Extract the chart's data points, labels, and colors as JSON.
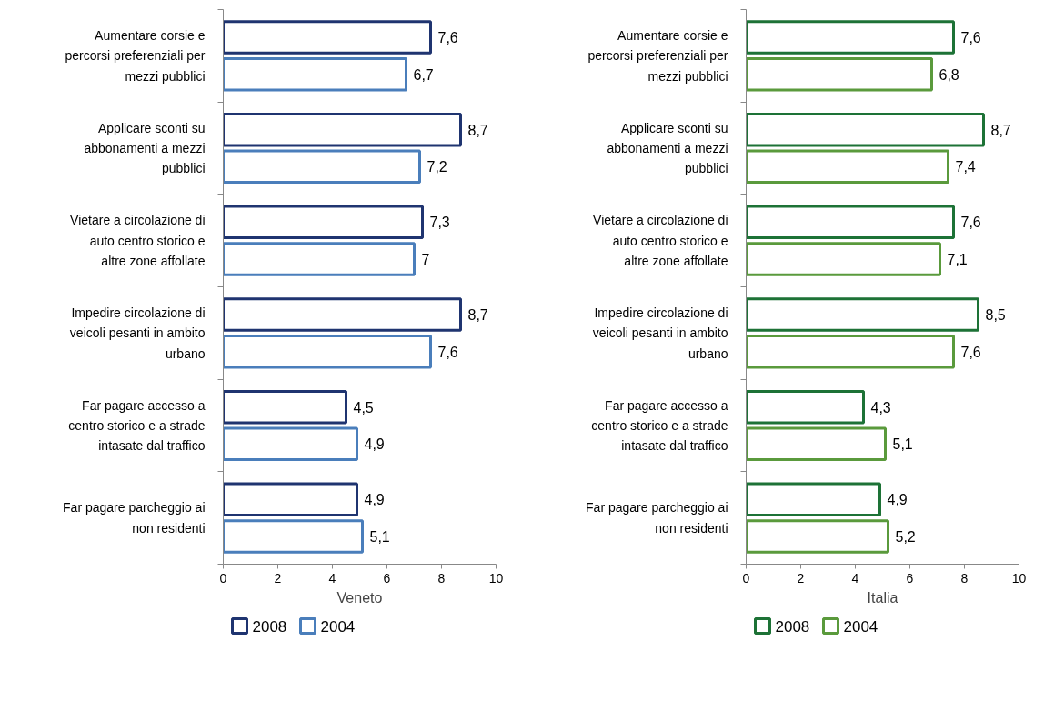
{
  "chart_data": [
    {
      "type": "bar",
      "orientation": "horizontal",
      "xlabel": "Veneto",
      "categories": [
        "Aumentare corsie e percorsi preferenziali per mezzi pubblici",
        "Applicare sconti su abbonamenti a mezzi pubblici",
        "Vietare a circolazione di auto centro storico e altre zone affollate",
        "Impedire circolazione di veicoli pesanti in ambito urbano",
        "Far pagare accesso a centro storico e a strade intasate dal traffico",
        "Far pagare parcheggio ai non residenti"
      ],
      "series": [
        {
          "name": "2008",
          "color": "#1f3470",
          "values": [
            7.6,
            8.7,
            7.3,
            8.7,
            4.5,
            4.9
          ],
          "value_labels": [
            "7,6",
            "8,7",
            "7,3",
            "8,7",
            "4,5",
            "4,9"
          ]
        },
        {
          "name": "2004",
          "color": "#4a7ebb",
          "values": [
            6.7,
            7.2,
            7,
            7.6,
            4.9,
            5.1
          ],
          "value_labels": [
            "6,7",
            "7,2",
            "7",
            "7,6",
            "4,9",
            "5,1"
          ]
        }
      ],
      "xlim": [
        0,
        10
      ],
      "xticks": [
        0,
        2,
        4,
        6,
        8,
        10
      ],
      "grid": false,
      "legend": "bottom"
    },
    {
      "type": "bar",
      "orientation": "horizontal",
      "xlabel": "Italia",
      "categories": [
        "Aumentare corsie e percorsi preferenziali per mezzi pubblici",
        "Applicare sconti su abbonamenti a mezzi pubblici",
        "Vietare a circolazione di auto centro storico e altre zone affollate",
        "Impedire circolazione di veicoli pesanti in ambito urbano",
        "Far pagare accesso a centro storico e a strade intasate dal traffico",
        "Far pagare parcheggio ai non residenti"
      ],
      "series": [
        {
          "name": "2008",
          "color": "#1d7236",
          "values": [
            7.6,
            8.7,
            7.6,
            8.5,
            4.3,
            4.9
          ],
          "value_labels": [
            "7,6",
            "8,7",
            "7,6",
            "8,5",
            "4,3",
            "4,9"
          ]
        },
        {
          "name": "2004",
          "color": "#5a9a3c",
          "values": [
            6.8,
            7.4,
            7.1,
            7.6,
            5.1,
            5.2
          ],
          "value_labels": [
            "6,8",
            "7,4",
            "7,1",
            "7,6",
            "5,1",
            "5,2"
          ]
        }
      ],
      "xlim": [
        0,
        10
      ],
      "xticks": [
        0,
        2,
        4,
        6,
        8,
        10
      ],
      "grid": false,
      "legend": "bottom"
    }
  ]
}
